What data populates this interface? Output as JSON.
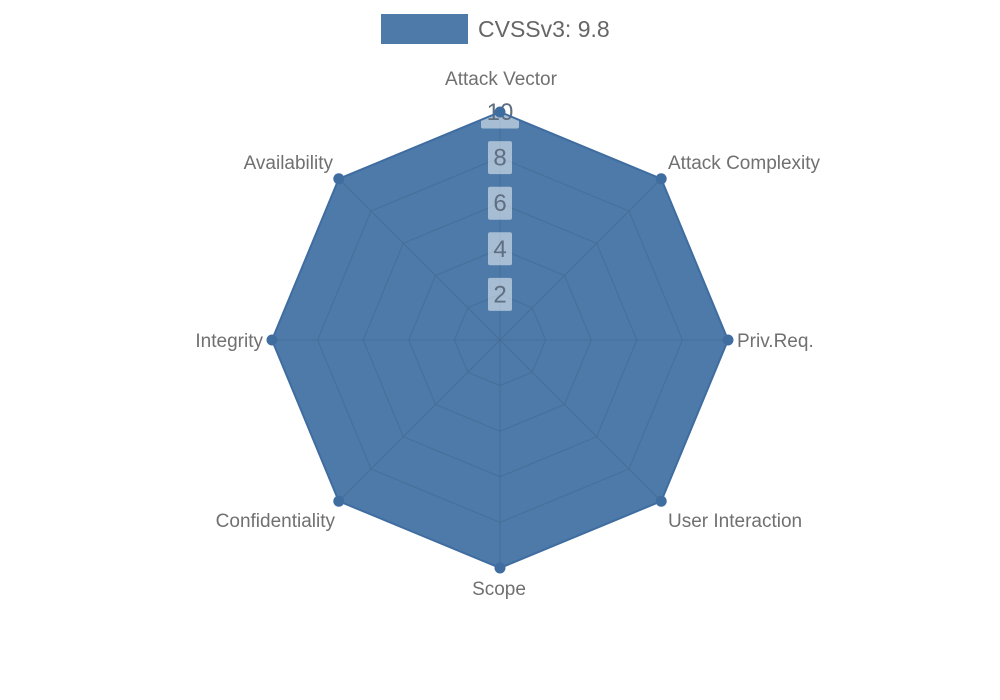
{
  "page": {
    "background": "#ffffff"
  },
  "legend": {
    "label": "CVSSv3: 9.8"
  },
  "colors": {
    "series_fill": "#4d7aa9",
    "series_line": "#3f6da0",
    "grid_line": "#466c94",
    "axis_label": "#707070",
    "tick_label": "#5f6e80",
    "tick_box": "rgba(255,255,255,0.5)",
    "legend_text": "#666666"
  },
  "chart_data": {
    "type": "radar",
    "title": "CVSSv3: 9.8",
    "categories": [
      "Attack Vector",
      "Attack Complexity",
      "Priv.Req.",
      "User Interaction",
      "Scope",
      "Confidentiality",
      "Integrity",
      "Availability"
    ],
    "series": [
      {
        "name": "CVSSv3: 9.8",
        "values": [
          10,
          10,
          10,
          10,
          10,
          10,
          10,
          10
        ]
      }
    ],
    "axis_range": [
      0,
      10
    ],
    "radial_ticks": [
      2,
      4,
      6,
      8,
      10
    ],
    "grid": "polygon-web",
    "rings": 5,
    "legend_position": "top-center"
  }
}
